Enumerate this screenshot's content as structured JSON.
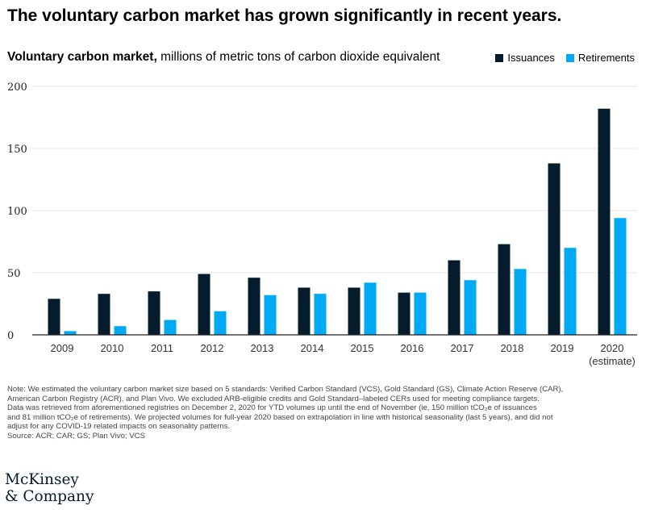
{
  "header": {
    "title": "The voluntary carbon market has grown significantly in recent years.",
    "subtitle_bold": "Voluntary carbon market,",
    "subtitle_rest": " millions of metric tons of carbon dioxide equivalent"
  },
  "legend": {
    "issuances": "Issuances",
    "retirements": "Retirements"
  },
  "colors": {
    "issuances": "#051c2c",
    "retirements": "#00a9f4",
    "grid": "#e6e6e6",
    "axis": "#222222"
  },
  "chart_data": {
    "type": "bar",
    "title": "Voluntary carbon market, millions of metric tons of carbon dioxide equivalent",
    "xlabel": "",
    "ylabel": "",
    "ylim": [
      0,
      200
    ],
    "yticks": [
      0,
      50,
      100,
      150,
      200
    ],
    "grid": true,
    "legend_position": "top-right",
    "categories": [
      "2009",
      "2010",
      "2011",
      "2012",
      "2013",
      "2014",
      "2015",
      "2016",
      "2017",
      "2018",
      "2019",
      "2020"
    ],
    "category_sublabels": [
      "",
      "",
      "",
      "",
      "",
      "",
      "",
      "",
      "",
      "",
      "",
      "(estimate)"
    ],
    "series": [
      {
        "name": "Issuances",
        "values": [
          29,
          33,
          35,
          49,
          46,
          38,
          38,
          34,
          60,
          73,
          138,
          182
        ]
      },
      {
        "name": "Retirements",
        "values": [
          3,
          7,
          12,
          19,
          32,
          33,
          42,
          34,
          44,
          53,
          70,
          94
        ]
      }
    ]
  },
  "notes": {
    "line1": "Note: We estimated the voluntary carbon market size based on 5 standards: Verified Carbon Standard (VCS), Gold Standard (GS), Climate Action Reserve (CAR),",
    "line2": "American Carbon Registry (ACR), and Plan Vivo. We excluded ARB-eligible credits and Gold Standard–labeled CERs used for meeting compliance targets.",
    "line3": "Data was retrieved from aforementioned registries on December 2, 2020 for YTD volumes up until the end of November (ie, 150 million tCO₂e of issuances",
    "line4": "and 81 million tCO₂e of retirements). We projected volumes for full-year 2020 based on extrapolation in line with historical seasonality (last 5 years), and did not",
    "line5": "adjust for any COVID-19 related impacts on seasonality patterns.",
    "source": "Source: ACR; CAR; GS; Plan Vivo; VCS"
  },
  "brand": {
    "line1": "McKinsey",
    "line2": "& Company"
  }
}
